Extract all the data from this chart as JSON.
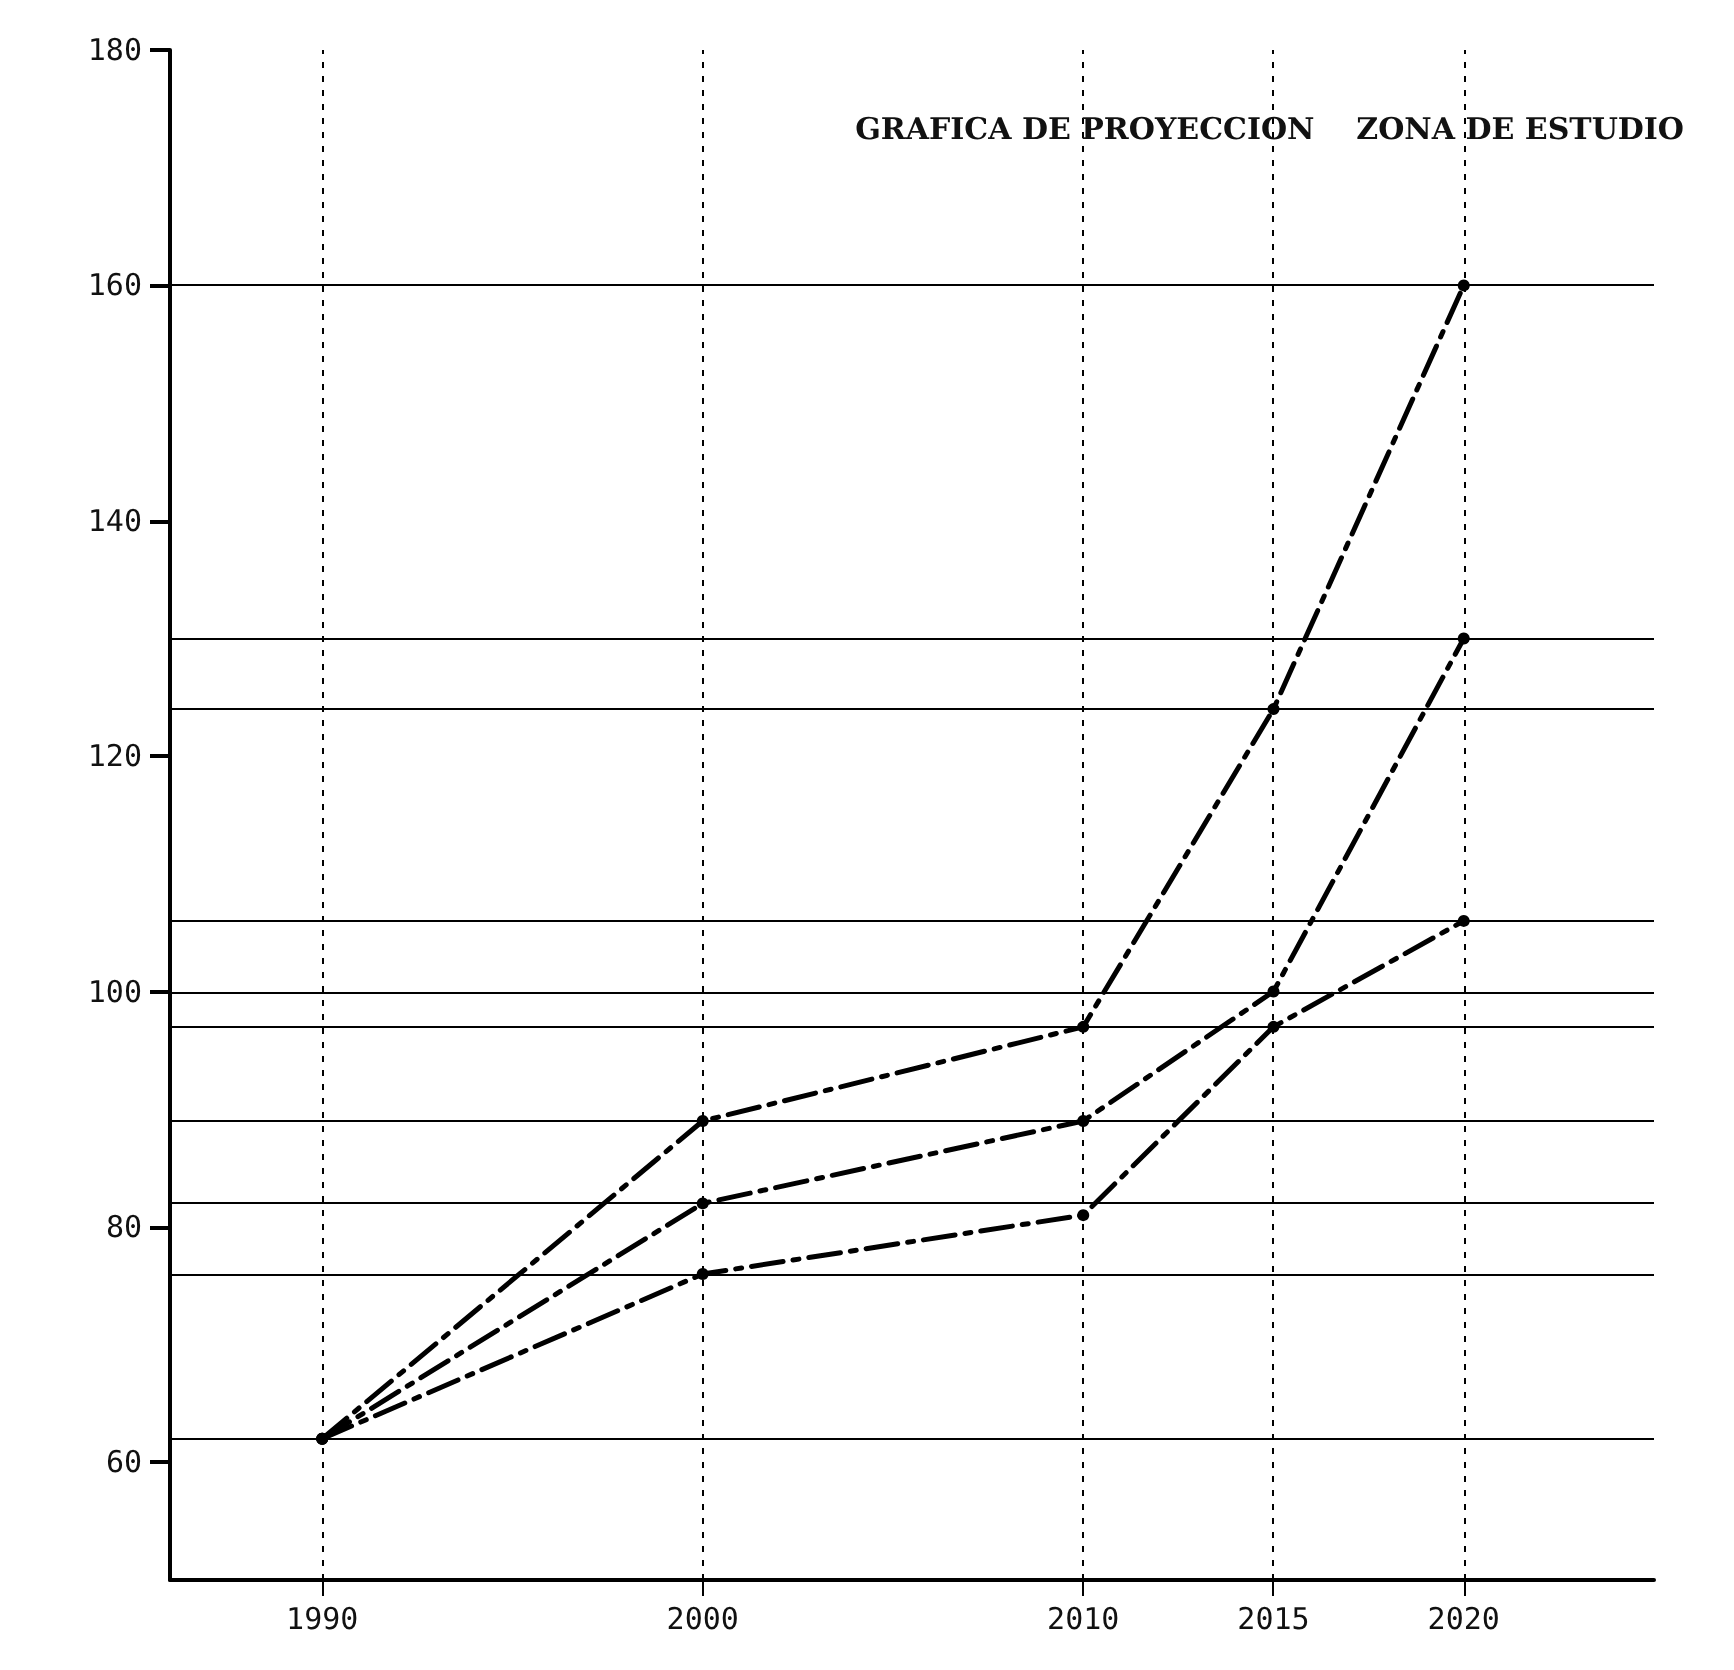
{
  "chart_data": {
    "type": "line",
    "title": "GRAFICA DE PROYECCION    ZONA DE ESTUDIO",
    "x": [
      1990,
      2000,
      2010,
      2015,
      2020
    ],
    "series": [
      {
        "color": "#000000",
        "values": [
          62,
          89,
          97,
          124,
          160
        ],
        "line_style": "dashed"
      },
      {
        "color": "#000000",
        "values": [
          62,
          82,
          89,
          100,
          130
        ],
        "line_style": "dashed"
      },
      {
        "color": "#000000",
        "values": [
          62,
          76,
          81,
          97,
          106
        ],
        "line_style": "dashed"
      }
    ],
    "marker": "circle",
    "xlim": [
      1986,
      2025
    ],
    "xticks": [
      1990,
      2000,
      2010,
      2015,
      2020
    ],
    "ylim": [
      50,
      180
    ],
    "yticks": [
      60,
      80,
      100,
      120,
      140,
      160,
      180
    ],
    "grid": false,
    "ref_lines": [
      {
        "axis": "y",
        "value": 160,
        "color": "#000000",
        "line_style": "solid"
      },
      {
        "axis": "y",
        "value": 130,
        "color": "#000000",
        "line_style": "solid"
      },
      {
        "axis": "y",
        "value": 124,
        "color": "#000000",
        "line_style": "solid"
      },
      {
        "axis": "y",
        "value": 106,
        "color": "#000000",
        "line_style": "solid"
      },
      {
        "axis": "y",
        "value": 100,
        "color": "#000000",
        "line_style": "solid"
      },
      {
        "axis": "y",
        "value": 97,
        "color": "#000000",
        "line_style": "solid"
      },
      {
        "axis": "y",
        "value": 89,
        "color": "#000000",
        "line_style": "solid"
      },
      {
        "axis": "y",
        "value": 82,
        "color": "#000000",
        "line_style": "solid"
      },
      {
        "axis": "y",
        "value": 76,
        "color": "#000000",
        "line_style": "solid"
      },
      {
        "axis": "y",
        "value": 62,
        "color": "#000000",
        "line_style": "solid"
      },
      {
        "axis": "x",
        "value": 1990,
        "color": "#000000",
        "line_style": "dashed"
      },
      {
        "axis": "x",
        "value": 2000,
        "color": "#000000",
        "line_style": "dashed"
      },
      {
        "axis": "x",
        "value": 2010,
        "color": "#000000",
        "line_style": "dashed"
      },
      {
        "axis": "x",
        "value": 2015,
        "color": "#000000",
        "line_style": "dashed"
      },
      {
        "axis": "x",
        "value": 2020,
        "color": "#000000",
        "line_style": "dashed"
      }
    ]
  }
}
